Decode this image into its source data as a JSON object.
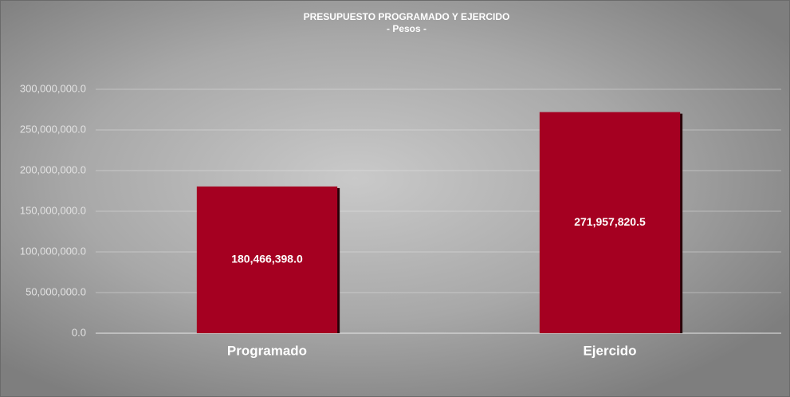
{
  "chart_data": {
    "type": "bar",
    "title": "PRESUPUESTO  PROGRAMADO  Y EJERCIDO",
    "subtitle": "- Pesos -",
    "categories": [
      "Programado",
      "Ejercido"
    ],
    "values": [
      180466398,
      271957820.5
    ],
    "value_labels": [
      "180,466,398.0",
      "271,957,820.5"
    ],
    "color": "#a50021",
    "ylim": [
      0,
      300000000
    ],
    "yticks": [
      {
        "value": 0,
        "label": "0.0"
      },
      {
        "value": 50000000,
        "label": "50,000,000.0"
      },
      {
        "value": 100000000,
        "label": "100,000,000.0"
      },
      {
        "value": 150000000,
        "label": "150,000,000.0"
      },
      {
        "value": 200000000,
        "label": "200,000,000.0"
      },
      {
        "value": 250000000,
        "label": "250,000,000.0"
      },
      {
        "value": 300000000,
        "label": "300,000,000.0"
      }
    ],
    "grid": true
  }
}
